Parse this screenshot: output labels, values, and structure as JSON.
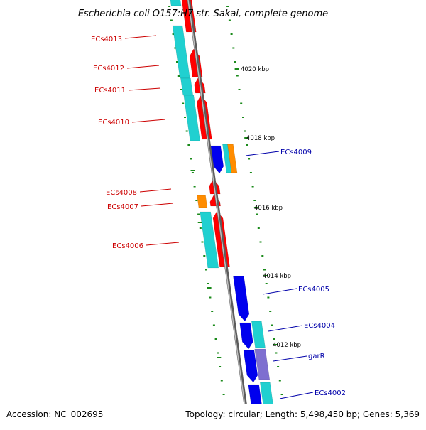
{
  "title": "Escherichia coli O157:H7 str. Sakai, complete genome",
  "footer": {
    "accession": "Accession: NC_002695",
    "info": "Topology: circular; Length: 5,498,450 bp; Genes: 5,369"
  },
  "colors": {
    "backbone": "#8a8a8a",
    "tick": "#1a8a1a",
    "red": "#ff0000",
    "cyan": "#20d0d0",
    "orange": "#ff8c00",
    "blue": "#0000ee",
    "purple": "#7e6fd0",
    "label_red": "#cc0000",
    "label_blue": "#0000aa"
  },
  "kbp_labels": [
    "4020 kbp",
    "4018 kbp",
    "4016 kbp",
    "4014 kbp",
    "4012 kbp"
  ],
  "genes": {
    "left": [
      "ECs4013",
      "ECs4012",
      "ECs4011",
      "ECs4010",
      "ECs4008",
      "ECs4007",
      "ECs4006"
    ],
    "right": [
      "ECs4009",
      "ECs4005",
      "ECs4004",
      "garR",
      "ECs4002"
    ]
  }
}
